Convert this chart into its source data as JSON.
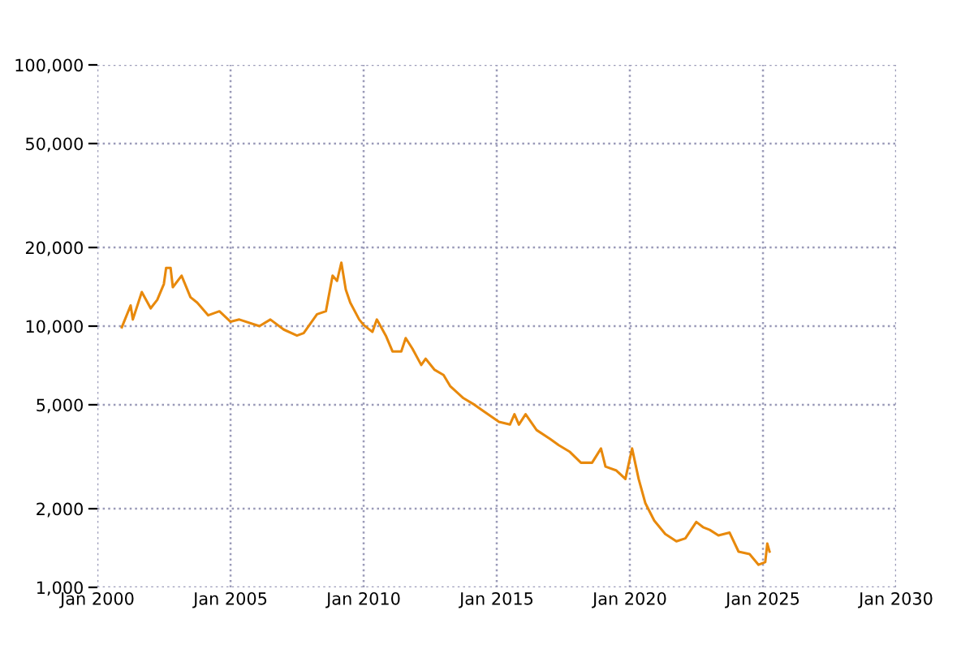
{
  "chart_data": {
    "type": "line",
    "log": "y",
    "grid": true,
    "line_style": "solid",
    "marker": "none",
    "x": [
      "2000-12",
      "2001-04",
      "2001-05",
      "2001-09",
      "2002-01",
      "2002-04",
      "2002-07",
      "2002-08",
      "2002-10",
      "2002-11",
      "2003-03",
      "2003-07",
      "2003-10",
      "2004-03",
      "2004-08",
      "2005-01",
      "2005-05",
      "2006-02",
      "2006-07",
      "2007-01",
      "2007-07",
      "2007-10",
      "2008-04",
      "2008-08",
      "2008-11",
      "2009-01",
      "2009-03",
      "2009-05",
      "2009-07",
      "2009-11",
      "2010-01",
      "2010-05",
      "2010-07",
      "2010-11",
      "2011-02",
      "2011-06",
      "2011-08",
      "2011-11",
      "2012-03",
      "2012-05",
      "2012-09",
      "2013-01",
      "2013-04",
      "2013-10",
      "2014-03",
      "2014-09",
      "2015-02",
      "2015-07",
      "2015-09",
      "2015-11",
      "2016-02",
      "2016-07",
      "2017-01",
      "2017-05",
      "2017-10",
      "2018-03",
      "2018-08",
      "2018-12",
      "2019-02",
      "2019-07",
      "2019-11",
      "2020-02",
      "2020-05",
      "2020-08",
      "2020-12",
      "2021-05",
      "2021-10",
      "2022-02",
      "2022-07",
      "2022-10",
      "2023-01",
      "2023-05",
      "2023-10",
      "2024-02",
      "2024-07",
      "2024-11",
      "2025-02",
      "2025-03",
      "2025-04"
    ],
    "series": [
      {
        "color": "#e8890c",
        "values": [
          9900,
          12000,
          10600,
          13500,
          11700,
          12600,
          14500,
          16700,
          16700,
          14100,
          15600,
          12900,
          12300,
          11000,
          11400,
          10400,
          10600,
          10000,
          10600,
          9700,
          9200,
          9400,
          11100,
          11400,
          15600,
          14900,
          17500,
          13800,
          12300,
          10600,
          10100,
          9500,
          10600,
          9200,
          8000,
          8000,
          9000,
          8200,
          7100,
          7500,
          6800,
          6500,
          5900,
          5300,
          5000,
          4600,
          4300,
          4200,
          4600,
          4200,
          4600,
          4000,
          3700,
          3500,
          3300,
          3000,
          3000,
          3400,
          2900,
          2800,
          2600,
          3400,
          2600,
          2100,
          1800,
          1600,
          1500,
          1540,
          1780,
          1700,
          1660,
          1580,
          1620,
          1370,
          1340,
          1220,
          1250,
          1470,
          1370
        ]
      }
    ],
    "xlim": [
      "2000-01",
      "2030-01"
    ],
    "xticks": [
      {
        "value": "2000-01",
        "label": "Jan 2000"
      },
      {
        "value": "2005-01",
        "label": "Jan 2005"
      },
      {
        "value": "2010-01",
        "label": "Jan 2010"
      },
      {
        "value": "2015-01",
        "label": "Jan 2015"
      },
      {
        "value": "2020-01",
        "label": "Jan 2020"
      },
      {
        "value": "2025-01",
        "label": "Jan 2025"
      },
      {
        "value": "2030-01",
        "label": "Jan 2030"
      }
    ],
    "ylim": [
      1000,
      100000
    ],
    "yticks": [
      {
        "value": 1000,
        "label": "1,000"
      },
      {
        "value": 2000,
        "label": "2,000"
      },
      {
        "value": 5000,
        "label": "5,000"
      },
      {
        "value": 10000,
        "label": "10,000"
      },
      {
        "value": 20000,
        "label": "20,000"
      },
      {
        "value": 50000,
        "label": "50,000"
      },
      {
        "value": 100000,
        "label": "100,000"
      }
    ]
  }
}
